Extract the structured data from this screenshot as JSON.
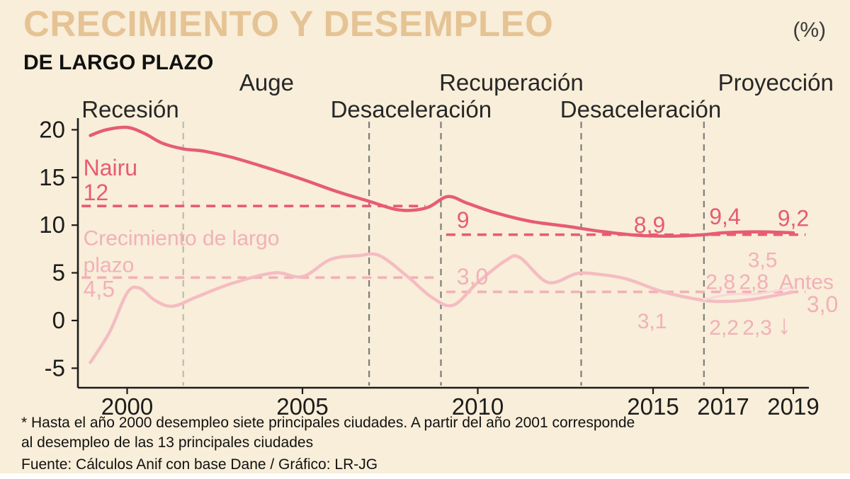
{
  "header": {
    "title_main": "CRECIMIENTO Y DESEMPLEO",
    "title_sub": "DE LARGO PLAZO",
    "unit_label": "(%)"
  },
  "footnote": {
    "line1": "* Hasta el año 2000 desempleo siete principales ciudades. A partir del año 2001 corresponde",
    "line2": "al desempleo de las 13 principales ciudades",
    "source": "Fuente: Cálculos Anif con base Dane / Gráfico: LR-JG"
  },
  "colors": {
    "background": "#f8eed9",
    "title_tan": "#e6c globally-invalid",
    "title": "#e5c394",
    "nairu": "#e65c73",
    "crecimiento": "#f2b0b8",
    "crecimiento_line": "#f5bcc2",
    "antes_faint": "#f8d8db",
    "phase_text": "#272727",
    "axis": "#1c1c1c",
    "grid_gray_light": "#bfbaae",
    "grid_gray": "#7d7d7d"
  },
  "chart_data": {
    "type": "line",
    "title": "Crecimiento y desempleo de largo plazo",
    "ylabel": "%",
    "x_axis": {
      "range": [
        1998.6,
        2019.5
      ],
      "ticks": [
        2000,
        2005,
        2010,
        2015,
        2017,
        2019
      ]
    },
    "y_axis": {
      "range": [
        -5,
        20
      ],
      "ticks": [
        20,
        15,
        10,
        5,
        0,
        -5
      ]
    },
    "phases": [
      {
        "label": "Recesión",
        "row": "lower",
        "year": 1998.7
      },
      {
        "label": "Auge",
        "row": "upper",
        "year": 2003.2
      },
      {
        "label": "Desaceleración",
        "row": "lower",
        "year": 2005.8
      },
      {
        "label": "Recuperación",
        "row": "upper",
        "year": 2008.9
      },
      {
        "label": "Desaceleración",
        "row": "lower",
        "year": 2012.35
      },
      {
        "label": "Proyección",
        "row": "upper",
        "year": 2016.85
      }
    ],
    "phase_boundaries": [
      {
        "year": 2001.6,
        "color_key": "grid_gray_light"
      },
      {
        "year": 2006.9,
        "color_key": "grid_gray"
      },
      {
        "year": 2008.95,
        "color_key": "grid_gray"
      },
      {
        "year": 2012.95,
        "color_key": "grid_gray"
      },
      {
        "year": 2016.45,
        "color_key": "grid_gray"
      }
    ],
    "reference_lines": [
      {
        "value": 12,
        "from": 1998.7,
        "to": 2008.5,
        "color_key": "nairu",
        "label": "12"
      },
      {
        "value": 9,
        "from": 2009.1,
        "to": 2019.35,
        "color_key": "nairu",
        "label": "9"
      },
      {
        "value": 4.5,
        "from": 1998.7,
        "to": 2008.8,
        "color_key": "crecimiento",
        "label": "4,5"
      },
      {
        "value": 3,
        "from": 2009.1,
        "to": 2019.35,
        "color_key": "crecimiento",
        "label": "3,0"
      }
    ],
    "series": [
      {
        "name": "Nairu",
        "key": "nairu",
        "color_key": "nairu",
        "width": 4.5,
        "points": [
          [
            1998.95,
            19.4
          ],
          [
            1999.4,
            20.0
          ],
          [
            2000,
            20.25
          ],
          [
            2000.5,
            19.6
          ],
          [
            2001,
            18.6
          ],
          [
            2001.6,
            18.0
          ],
          [
            2002.2,
            17.75
          ],
          [
            2003,
            17.1
          ],
          [
            2004,
            16.0
          ],
          [
            2005,
            14.8
          ],
          [
            2006,
            13.5
          ],
          [
            2006.9,
            12.5
          ],
          [
            2007.6,
            11.7
          ],
          [
            2008.1,
            11.55
          ],
          [
            2008.6,
            11.9
          ],
          [
            2009.15,
            13.0
          ],
          [
            2009.7,
            12.3
          ],
          [
            2010.5,
            11.3
          ],
          [
            2011.5,
            10.4
          ],
          [
            2012.5,
            9.9
          ],
          [
            2013.5,
            9.35
          ],
          [
            2014.5,
            8.95
          ],
          [
            2015.5,
            8.85
          ],
          [
            2016.45,
            9.0
          ],
          [
            2017,
            9.2
          ],
          [
            2018,
            9.3
          ],
          [
            2019,
            9.2
          ]
        ]
      },
      {
        "name": "Crecimiento de largo plazo",
        "key": "crecimiento",
        "color_key": "crecimiento_line",
        "width": 4.5,
        "points": [
          [
            1998.95,
            -4.4
          ],
          [
            1999.5,
            -1.2
          ],
          [
            2000,
            2.9
          ],
          [
            2000.35,
            3.4
          ],
          [
            2000.8,
            2.1
          ],
          [
            2001.3,
            1.5
          ],
          [
            2002,
            2.5
          ],
          [
            2003,
            3.9
          ],
          [
            2004.2,
            5.0
          ],
          [
            2005,
            4.6
          ],
          [
            2005.8,
            6.4
          ],
          [
            2006.6,
            6.8
          ],
          [
            2007.2,
            6.8
          ],
          [
            2008,
            4.6
          ],
          [
            2008.7,
            2.4
          ],
          [
            2009.3,
            1.6
          ],
          [
            2010,
            4.0
          ],
          [
            2010.8,
            6.3
          ],
          [
            2011.2,
            6.6
          ],
          [
            2012,
            4.0
          ],
          [
            2012.8,
            4.9
          ],
          [
            2013.3,
            4.9
          ],
          [
            2014.2,
            4.4
          ],
          [
            2015.2,
            3.1
          ],
          [
            2016,
            2.4
          ],
          [
            2016.8,
            2.0
          ],
          [
            2017.8,
            2.2
          ],
          [
            2019,
            3.0
          ]
        ]
      },
      {
        "name": "Proyección anterior (Antes)",
        "key": "antes",
        "color_key": "antes_faint",
        "width": 3,
        "points": [
          [
            2016.45,
            2.2
          ],
          [
            2017.2,
            2.75
          ],
          [
            2018,
            2.8
          ],
          [
            2019,
            3.5
          ]
        ]
      }
    ],
    "annotations": [
      {
        "text": "Nairu",
        "year": 1998.75,
        "value": 15.2,
        "color_key": "nairu",
        "size": 32
      },
      {
        "text": "12",
        "year": 1998.75,
        "value": 12.6,
        "color_key": "nairu",
        "size": 32
      },
      {
        "text": "Crecimiento de largo",
        "year": 1998.75,
        "value": 7.9,
        "color_key": "crecimiento",
        "size": 30
      },
      {
        "text": "plazo",
        "year": 1998.75,
        "value": 5.1,
        "color_key": "crecimiento",
        "size": 30
      },
      {
        "text": "4,5",
        "year": 1998.75,
        "value": 2.5,
        "color_key": "crecimiento",
        "size": 32
      },
      {
        "text": "9",
        "year": 2009.4,
        "value": 9.7,
        "color_key": "nairu",
        "size": 32
      },
      {
        "text": "3,0",
        "year": 2009.4,
        "value": 3.8,
        "color_key": "crecimiento",
        "size": 32
      },
      {
        "text": "8,9",
        "year": 2014.45,
        "value": 9.2,
        "color_key": "nairu",
        "size": 32
      },
      {
        "text": "9,4",
        "year": 2016.6,
        "value": 10.1,
        "color_key": "nairu",
        "size": 32
      },
      {
        "text": "9,2",
        "year": 2018.55,
        "value": 9.9,
        "color_key": "nairu",
        "size": 32
      },
      {
        "text": "3,5",
        "year": 2017.7,
        "value": 5.6,
        "color_key": "crecimiento",
        "size": 30
      },
      {
        "text": "2,8",
        "year": 2016.5,
        "value": 3.3,
        "color_key": "crecimiento",
        "size": 30
      },
      {
        "text": "2,8",
        "year": 2017.45,
        "value": 3.3,
        "color_key": "crecimiento",
        "size": 30
      },
      {
        "text": "Antes",
        "year": 2018.6,
        "value": 3.3,
        "color_key": "crecimiento",
        "size": 30
      },
      {
        "text": "3,0",
        "year": 2019.38,
        "value": 0.9,
        "color_key": "crecimiento",
        "size": 32
      },
      {
        "text": "3,1",
        "year": 2014.55,
        "value": -0.8,
        "color_key": "crecimiento",
        "size": 30
      },
      {
        "text": "2,2",
        "year": 2016.6,
        "value": -1.5,
        "color_key": "crecimiento",
        "size": 30
      },
      {
        "text": "2,3",
        "year": 2017.55,
        "value": -1.5,
        "color_key": "crecimiento",
        "size": 30
      },
      {
        "text": "↓",
        "year": 2018.55,
        "value": -1.4,
        "color_key": "crecimiento",
        "size": 38
      }
    ]
  }
}
